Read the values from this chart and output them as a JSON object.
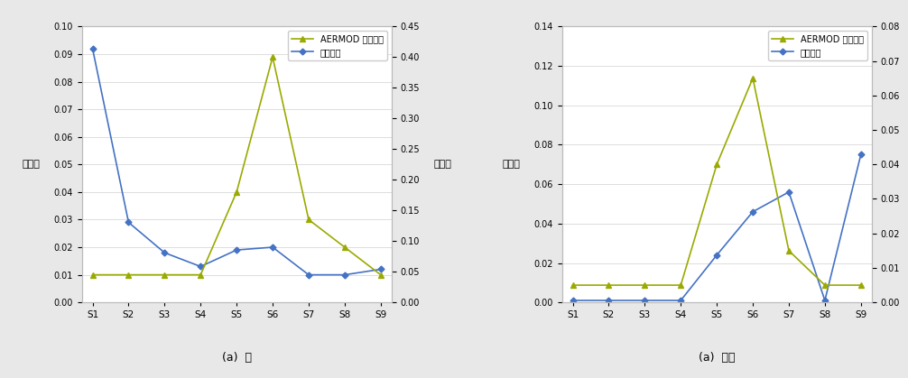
{
  "left_chart": {
    "x_labels": [
      "S1",
      "S2",
      "S3",
      "S4",
      "S5",
      "S6",
      "S7",
      "S8",
      "S9"
    ],
    "aermod_data": [
      0.045,
      0.045,
      0.045,
      0.045,
      0.18,
      0.4,
      0.135,
      0.09,
      0.045
    ],
    "measured_data": [
      0.092,
      0.029,
      0.018,
      0.013,
      0.019,
      0.02,
      0.01,
      0.01,
      0.012
    ],
    "left_ylim": [
      0,
      0.1
    ],
    "right_ylim": [
      0,
      0.45
    ],
    "left_yticks": [
      0,
      0.01,
      0.02,
      0.03,
      0.04,
      0.05,
      0.06,
      0.07,
      0.08,
      0.09,
      0.1
    ],
    "right_yticks": [
      0,
      0.05,
      0.1,
      0.15,
      0.2,
      0.25,
      0.3,
      0.35,
      0.4,
      0.45
    ],
    "subtitle": "(a)  봄"
  },
  "right_chart": {
    "x_labels": [
      "S1",
      "S2",
      "S3",
      "S4",
      "S5",
      "S6",
      "S7",
      "S8",
      "S9"
    ],
    "aermod_data": [
      0.005,
      0.005,
      0.005,
      0.005,
      0.04,
      0.065,
      0.015,
      0.005,
      0.005
    ],
    "measured_data": [
      0.001,
      0.001,
      0.001,
      0.001,
      0.024,
      0.046,
      0.056,
      0.001,
      0.075
    ],
    "left_ylim": [
      0,
      0.14
    ],
    "right_ylim": [
      0,
      0.08
    ],
    "left_yticks": [
      0,
      0.02,
      0.04,
      0.06,
      0.08,
      0.1,
      0.12,
      0.14
    ],
    "right_yticks": [
      0,
      0.01,
      0.02,
      0.03,
      0.04,
      0.05,
      0.06,
      0.07,
      0.08
    ],
    "subtitle": "(a)  가을"
  },
  "aermod_color": "#9aaa00",
  "measured_color": "#4472C4",
  "aermod_label": "AERMOD 모델결과",
  "measured_label": "실측결과",
  "left_ylabel_left": "실측값",
  "right_ylabel_right": "모델값",
  "background_color": "#e8e8e8",
  "plot_bg_color": "#ffffff"
}
